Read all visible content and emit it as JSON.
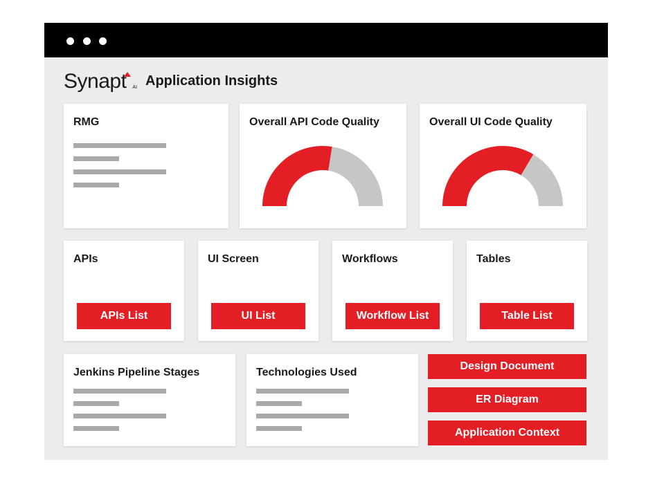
{
  "window": {
    "title_dots": 3
  },
  "header": {
    "logo_text": "Synapt",
    "logo_suffix": "AI",
    "title": "Application Insights"
  },
  "cards": {
    "rmg": {
      "title": "RMG"
    },
    "api_quality": {
      "title": "Overall API Code Quality",
      "gauge_fraction": 0.55
    },
    "ui_quality": {
      "title": "Overall UI Code Quality",
      "gauge_fraction": 0.67
    },
    "apis": {
      "title": "APIs",
      "button": "APIs List"
    },
    "ui_screen": {
      "title": "UI Screen",
      "button": "UI List"
    },
    "workflows": {
      "title": "Workflows",
      "button": "Workflow List"
    },
    "tables": {
      "title": "Tables",
      "button": "Table List"
    },
    "jenkins": {
      "title": "Jenkins Pipeline Stages"
    },
    "technologies": {
      "title": "Technologies Used"
    }
  },
  "actions": {
    "design_document": "Design Document",
    "er_diagram": "ER Diagram",
    "application_context": "Application Context"
  },
  "colors": {
    "accent": "#e31e24",
    "gauge_rest": "#c6c6c6",
    "placeholder": "#a9a9a9",
    "titlebar": "#000000",
    "background": "#ececec"
  }
}
